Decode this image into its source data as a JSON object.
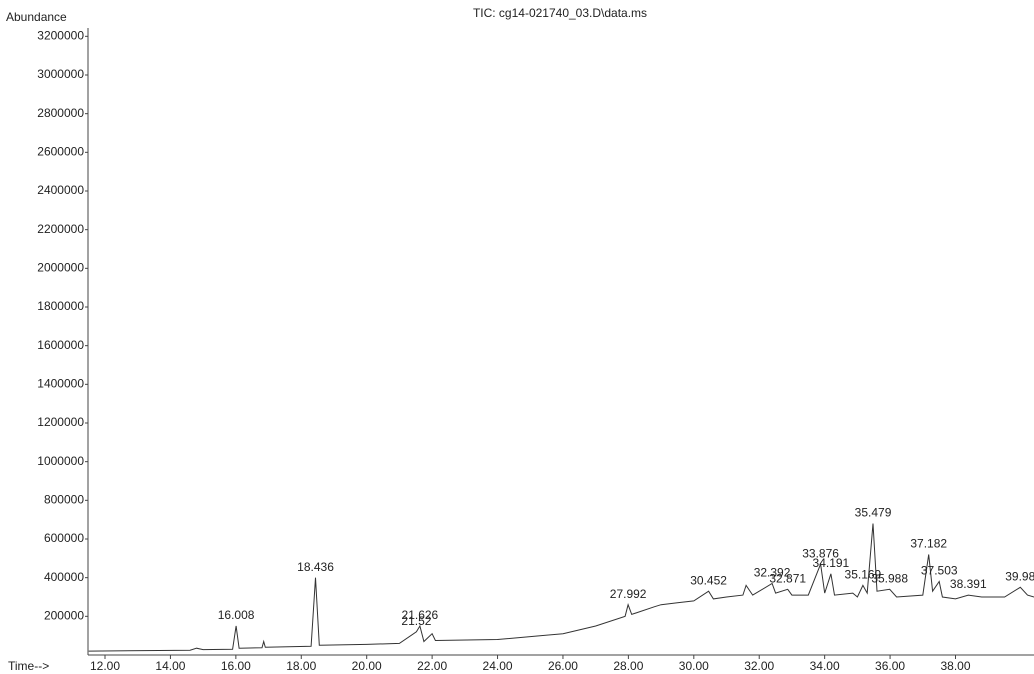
{
  "chart_data": {
    "type": "line",
    "title": "TIC: cg14-021740_03.D\\data.ms",
    "ylabel": "Abundance",
    "xlabel": "Time-->",
    "color": "#333333",
    "x": [
      11.5,
      14.6,
      14.8,
      15,
      15.9,
      16.008,
      16.1,
      16.8,
      16.85,
      16.9,
      18.3,
      18.436,
      18.55,
      20,
      21,
      21.52,
      21.626,
      21.75,
      22.0,
      22.1,
      24,
      25,
      26,
      27,
      27.9,
      27.992,
      28.1,
      28.8,
      29,
      29.5,
      30,
      30.452,
      30.6,
      31,
      31.5,
      31.6,
      31.8,
      32.392,
      32.5,
      32.871,
      33,
      33.5,
      33.876,
      34,
      34.191,
      34.3,
      34.861,
      35,
      35.169,
      35.3,
      35.479,
      35.6,
      35.988,
      36.2,
      37,
      37.182,
      37.3,
      37.503,
      37.6,
      38,
      38.391,
      38.8,
      39.5,
      39.98,
      40.2,
      40.4
    ],
    "values": [
      20000,
      25000,
      35000,
      28000,
      30000,
      150000,
      35000,
      38000,
      70000,
      40000,
      45000,
      400000,
      50000,
      55000,
      60000,
      120000,
      150000,
      70000,
      110000,
      75000,
      80000,
      95000,
      110000,
      150000,
      200000,
      260000,
      210000,
      250000,
      260000,
      270000,
      280000,
      330000,
      290000,
      300000,
      310000,
      360000,
      310000,
      370000,
      320000,
      340000,
      310000,
      310000,
      470000,
      320000,
      420000,
      310000,
      320000,
      300000,
      360000,
      320000,
      680000,
      330000,
      340000,
      300000,
      310000,
      520000,
      330000,
      380000,
      300000,
      290000,
      310000,
      300000,
      300000,
      350000,
      310000,
      300000
    ],
    "peaks": [
      {
        "time": 16.008,
        "abundance": 150000
      },
      {
        "time": 18.436,
        "abundance": 400000
      },
      {
        "time": 21.52,
        "abundance": 120000
      },
      {
        "time": 21.626,
        "abundance": 150000
      },
      {
        "time": 27.992,
        "abundance": 260000
      },
      {
        "time": 30.452,
        "abundance": 330000
      },
      {
        "time": 32.392,
        "abundance": 370000
      },
      {
        "time": 32.871,
        "abundance": 340000
      },
      {
        "time": 33.876,
        "abundance": 470000
      },
      {
        "time": 34.191,
        "abundance": 420000
      },
      {
        "time": 35.169,
        "abundance": 360000
      },
      {
        "time": 35.479,
        "abundance": 680000
      },
      {
        "time": 35.988,
        "abundance": 340000
      },
      {
        "time": 37.182,
        "abundance": 520000
      },
      {
        "time": 37.503,
        "abundance": 380000
      },
      {
        "time": 38.391,
        "abundance": 310000
      },
      {
        "time": 39.98,
        "abundance": 350000
      }
    ],
    "xlim": [
      11.48,
      40.4
    ],
    "ylim": [
      0,
      3300000
    ],
    "xticks": [
      {
        "value": 12,
        "label": "12.00"
      },
      {
        "value": 14,
        "label": "14.00"
      },
      {
        "value": 16,
        "label": "16.00"
      },
      {
        "value": 18,
        "label": "18.00"
      },
      {
        "value": 20,
        "label": "20.00"
      },
      {
        "value": 22,
        "label": "22.00"
      },
      {
        "value": 24,
        "label": "24.00"
      },
      {
        "value": 26,
        "label": "26.00"
      },
      {
        "value": 28,
        "label": "28.00"
      },
      {
        "value": 30,
        "label": "30.00"
      },
      {
        "value": 32,
        "label": "32.00"
      },
      {
        "value": 34,
        "label": "34.00"
      },
      {
        "value": 36,
        "label": "36.00"
      },
      {
        "value": 38,
        "label": "38.00"
      }
    ],
    "yticks": [
      200000,
      400000,
      600000,
      800000,
      1000000,
      1200000,
      1400000,
      1600000,
      1800000,
      2000000,
      2200000,
      2400000,
      2600000,
      2800000,
      3000000,
      3200000
    ]
  }
}
